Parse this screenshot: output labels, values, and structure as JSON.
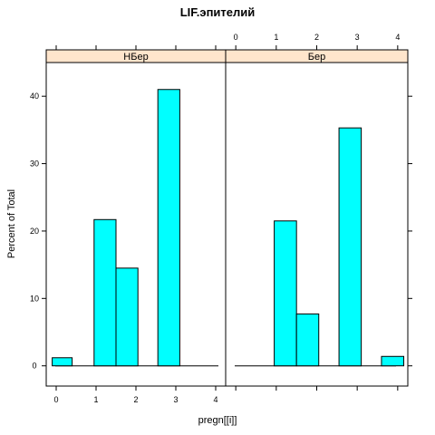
{
  "chart_data": {
    "type": "bar",
    "title": "LIF.эпителий",
    "xlabel": "pregn[[i]]",
    "ylabel": "Percent of Total",
    "xlim": [
      -0.25,
      4.25
    ],
    "ylim": [
      -3,
      45
    ],
    "x_ticks": [
      0,
      1,
      2,
      3,
      4
    ],
    "y_ticks": [
      0,
      10,
      20,
      30,
      40
    ],
    "grid": false,
    "fill_color": "#00ffff",
    "strip_color": "#ffe5cc",
    "panels": [
      {
        "label": "НБер",
        "bins": [
          {
            "x0": -0.1,
            "x1": 0.4,
            "value": 1.2
          },
          {
            "x0": 0.95,
            "x1": 1.5,
            "value": 21.7
          },
          {
            "x0": 1.5,
            "x1": 2.05,
            "value": 14.5
          },
          {
            "x0": 2.55,
            "x1": 3.1,
            "value": 41.0
          }
        ]
      },
      {
        "label": "Бер",
        "bins": [
          {
            "x0": 0.95,
            "x1": 1.5,
            "value": 21.5
          },
          {
            "x0": 1.5,
            "x1": 2.05,
            "value": 7.7
          },
          {
            "x0": 2.55,
            "x1": 3.1,
            "value": 35.3
          },
          {
            "x0": 3.6,
            "x1": 4.15,
            "value": 1.4
          }
        ]
      }
    ]
  }
}
